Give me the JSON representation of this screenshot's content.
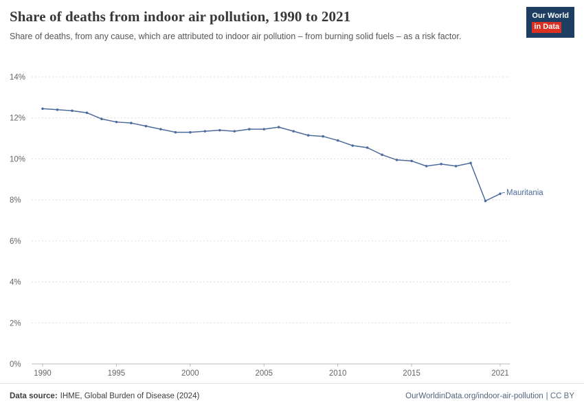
{
  "header": {
    "title": "Share of deaths from indoor air pollution, 1990 to 2021",
    "subtitle": "Share of deaths, from any cause, which are attributed to indoor air pollution – from burning solid fuels – as a risk factor.",
    "logo": {
      "line1": "Our World",
      "line2": "in Data",
      "bg": "#1d3d63",
      "accent": "#dc3022"
    }
  },
  "chart_data": {
    "type": "line",
    "title": "Share of deaths from indoor air pollution, 1990 to 2021",
    "xlabel": "",
    "ylabel": "",
    "x_range": [
      1990,
      2021
    ],
    "ylim": [
      0,
      14
    ],
    "yticks": [
      0,
      2,
      4,
      6,
      8,
      10,
      12,
      14
    ],
    "ytick_suffix": "%",
    "xticks": [
      1990,
      1995,
      2000,
      2005,
      2010,
      2015,
      2021
    ],
    "grid": "horizontal-dashed",
    "legend_position": "end-of-line",
    "series": [
      {
        "name": "Mauritania",
        "color": "#4c6a9c",
        "x": [
          1990,
          1991,
          1992,
          1993,
          1994,
          1995,
          1996,
          1997,
          1998,
          1999,
          2000,
          2001,
          2002,
          2003,
          2004,
          2005,
          2006,
          2007,
          2008,
          2009,
          2010,
          2011,
          2012,
          2013,
          2014,
          2015,
          2016,
          2017,
          2018,
          2019,
          2020,
          2021
        ],
        "values": [
          12.45,
          12.4,
          12.35,
          12.25,
          11.95,
          11.8,
          11.75,
          11.6,
          11.45,
          11.3,
          11.3,
          11.35,
          11.4,
          11.35,
          11.45,
          11.45,
          11.55,
          11.35,
          11.15,
          11.1,
          10.9,
          10.65,
          10.55,
          10.2,
          9.95,
          9.9,
          9.65,
          9.75,
          9.65,
          9.8,
          7.95,
          8.3
        ]
      }
    ]
  },
  "footer": {
    "source_label": "Data source:",
    "source_text": "IHME, Global Burden of Disease (2024)",
    "link_text": "OurWorldinData.org/indoor-air-pollution",
    "license_text": "| CC BY"
  }
}
